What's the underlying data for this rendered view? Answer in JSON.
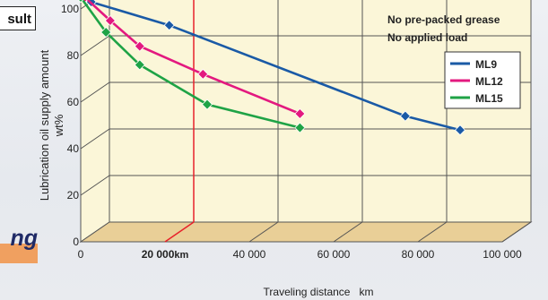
{
  "side": {
    "result_fragment": "sult",
    "italic_fragment": "ng"
  },
  "colors": {
    "plot_background": "#fbf6d8",
    "grid": "#555555",
    "floor": "#e9cf97",
    "highlight_line": "#e8202a",
    "highlight_label": "#e8202a"
  },
  "chart_data": {
    "type": "line",
    "title": "",
    "xlabel": "Traveling distance   km",
    "ylabel_line1": "Lubrication oil supply amount",
    "ylabel_line2": "wt%",
    "xlim": [
      0,
      100000
    ],
    "ylim": [
      0,
      105
    ],
    "x_ticks": [
      {
        "value": 0,
        "label": "0"
      },
      {
        "value": 20000,
        "label": "20 000",
        "unit": "km",
        "highlight": true
      },
      {
        "value": 40000,
        "label": "40 000"
      },
      {
        "value": 60000,
        "label": "60 000"
      },
      {
        "value": 80000,
        "label": "80 000"
      },
      {
        "value": 100000,
        "label": "100 000"
      }
    ],
    "y_ticks": [
      {
        "value": 0,
        "label": "0"
      },
      {
        "value": 20,
        "label": "20"
      },
      {
        "value": 40,
        "label": "40"
      },
      {
        "value": 60,
        "label": "60"
      },
      {
        "value": 80,
        "label": "80"
      },
      {
        "value": 100,
        "label": "100"
      }
    ],
    "annotation_lines": [
      "No pre-packed grease",
      "No applied load"
    ],
    "legend_position": "top-right",
    "series": [
      {
        "name": "ML9",
        "color": "#1a5aa6",
        "points": [
          [
            2500,
            103
          ],
          [
            21000,
            93
          ],
          [
            77000,
            54
          ],
          [
            90000,
            48
          ]
        ]
      },
      {
        "name": "ML12",
        "color": "#e3197f",
        "points": [
          [
            1000,
            105
          ],
          [
            7000,
            95
          ],
          [
            14000,
            84
          ],
          [
            29000,
            72
          ],
          [
            52000,
            55
          ]
        ]
      },
      {
        "name": "ML15",
        "color": "#1fa346",
        "points": [
          [
            0,
            105
          ],
          [
            6000,
            90
          ],
          [
            14000,
            76
          ],
          [
            30000,
            59
          ],
          [
            52000,
            49
          ]
        ]
      }
    ],
    "grid": true
  }
}
